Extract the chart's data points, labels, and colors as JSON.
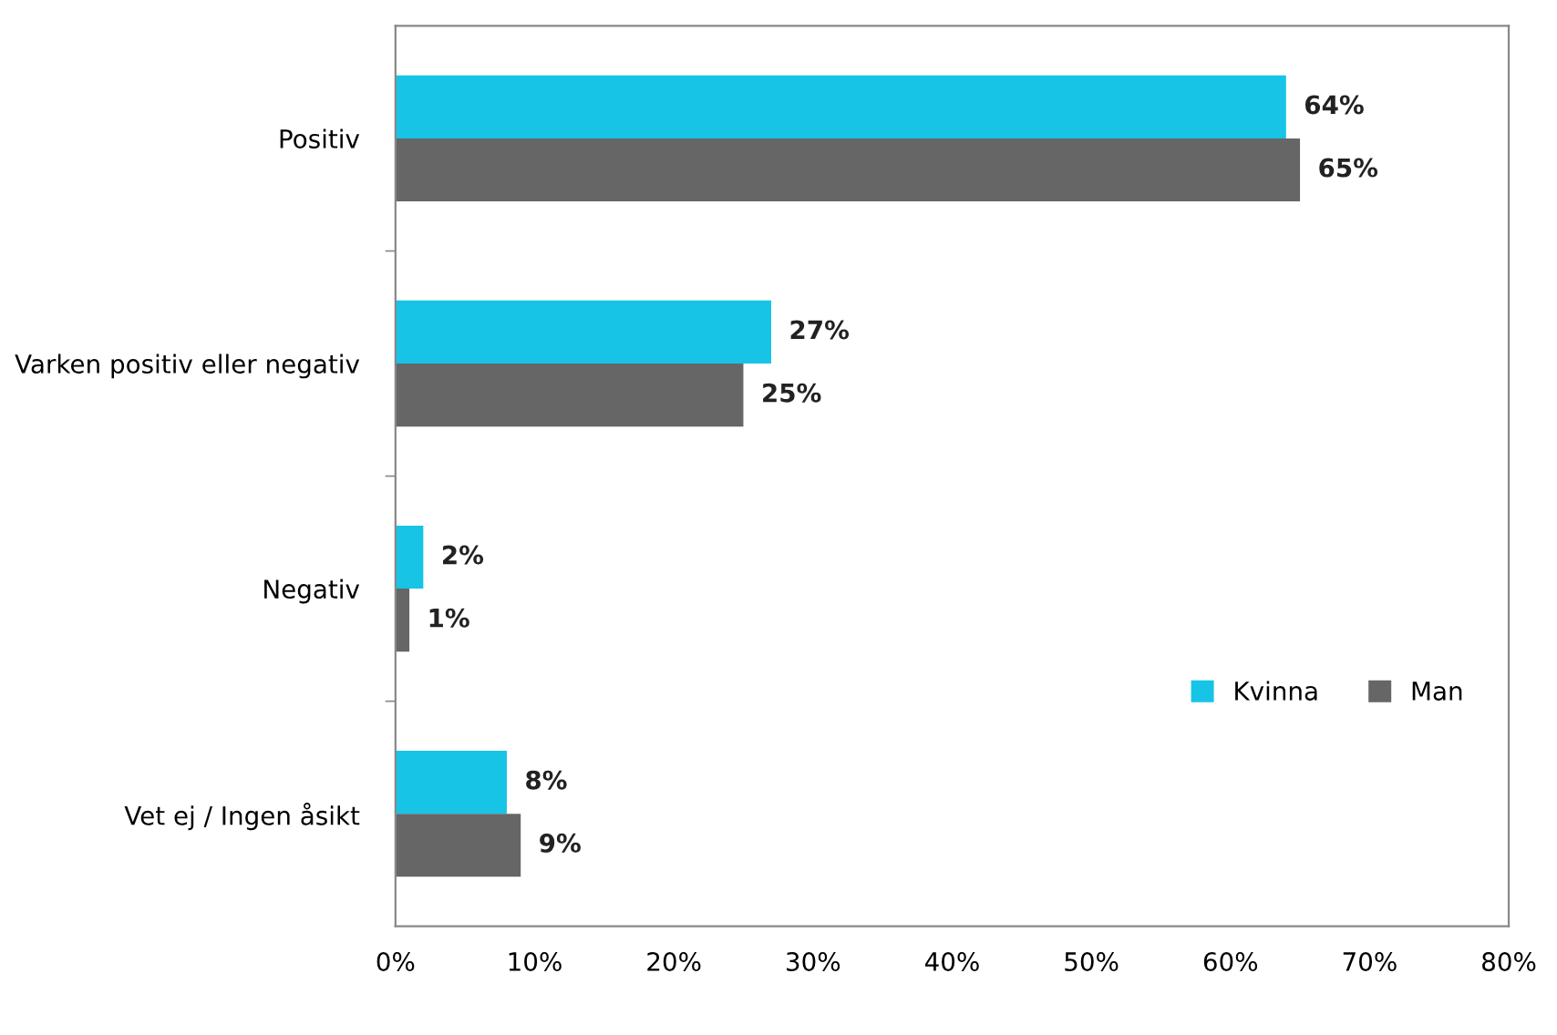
{
  "chart_data": {
    "type": "bar",
    "orientation": "horizontal",
    "categories": [
      "Positiv",
      "Varken positiv eller negativ",
      "Negativ",
      "Vet ej / Ingen åsikt"
    ],
    "series": [
      {
        "name": "Kvinna",
        "color": "#17c4e6",
        "values": [
          64,
          27,
          2,
          8
        ],
        "value_labels": [
          "64%",
          "27%",
          "2%",
          "8%"
        ]
      },
      {
        "name": "Man",
        "color": "#666666",
        "values": [
          65,
          25,
          1,
          9
        ],
        "value_labels": [
          "65%",
          "25%",
          "1%",
          "9%"
        ]
      }
    ],
    "xlim": [
      0,
      80
    ],
    "xticks": [
      {
        "value": 0,
        "label": "0%"
      },
      {
        "value": 10,
        "label": "10%"
      },
      {
        "value": 20,
        "label": "20%"
      },
      {
        "value": 30,
        "label": "30%"
      },
      {
        "value": 40,
        "label": "40%"
      },
      {
        "value": 50,
        "label": "50%"
      },
      {
        "value": 60,
        "label": "60%"
      },
      {
        "value": 70,
        "label": "70%"
      },
      {
        "value": 80,
        "label": "80%"
      }
    ],
    "grid": false,
    "legend": "lower right"
  }
}
